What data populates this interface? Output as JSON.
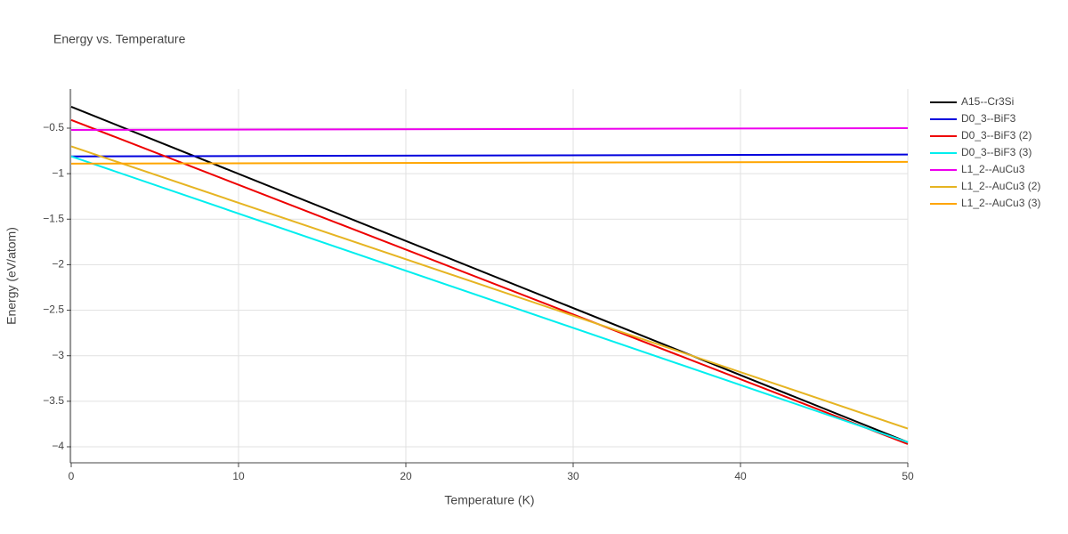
{
  "chart_data": {
    "type": "line",
    "title": "Energy vs. Temperature",
    "x_label": "Temperature (K)",
    "y_label": "Energy (eV/atom)",
    "x": [
      0,
      50
    ],
    "series": [
      {
        "name": "A15--Cr3Si",
        "color": "#000000",
        "values": [
          -0.265,
          -3.95
        ]
      },
      {
        "name": "D0_3--BiF3",
        "color": "#0000dd",
        "values": [
          -0.81,
          -0.79
        ]
      },
      {
        "name": "D0_3--BiF3 (2)",
        "color": "#ee0000",
        "values": [
          -0.41,
          -3.97
        ]
      },
      {
        "name": "D0_3--BiF3 (3)",
        "color": "#00eeee",
        "values": [
          -0.81,
          -3.95
        ]
      },
      {
        "name": "L1_2--AuCu3",
        "color": "#ee00ee",
        "values": [
          -0.52,
          -0.5
        ]
      },
      {
        "name": "L1_2--AuCu3 (2)",
        "color": "#e6b422",
        "values": [
          -0.7,
          -3.8
        ]
      },
      {
        "name": "L1_2--AuCu3 (3)",
        "color": "#ffa500",
        "values": [
          -0.89,
          -0.87
        ]
      }
    ],
    "xlim": [
      0,
      50
    ],
    "xticks": [
      0,
      10,
      20,
      30,
      40,
      50
    ],
    "ylim": [
      -4.176,
      -0.07
    ],
    "yticks": [
      {
        "value": -4,
        "label": "−4"
      },
      {
        "value": -3.5,
        "label": "−3.5"
      },
      {
        "value": -3,
        "label": "−3"
      },
      {
        "value": -2.5,
        "label": "−2.5"
      },
      {
        "value": -2,
        "label": "−2"
      },
      {
        "value": -1.5,
        "label": "−1.5"
      },
      {
        "value": -1,
        "label": "−1"
      },
      {
        "value": -0.5,
        "label": "−0.5"
      }
    ],
    "grid": true,
    "legend": "right"
  }
}
